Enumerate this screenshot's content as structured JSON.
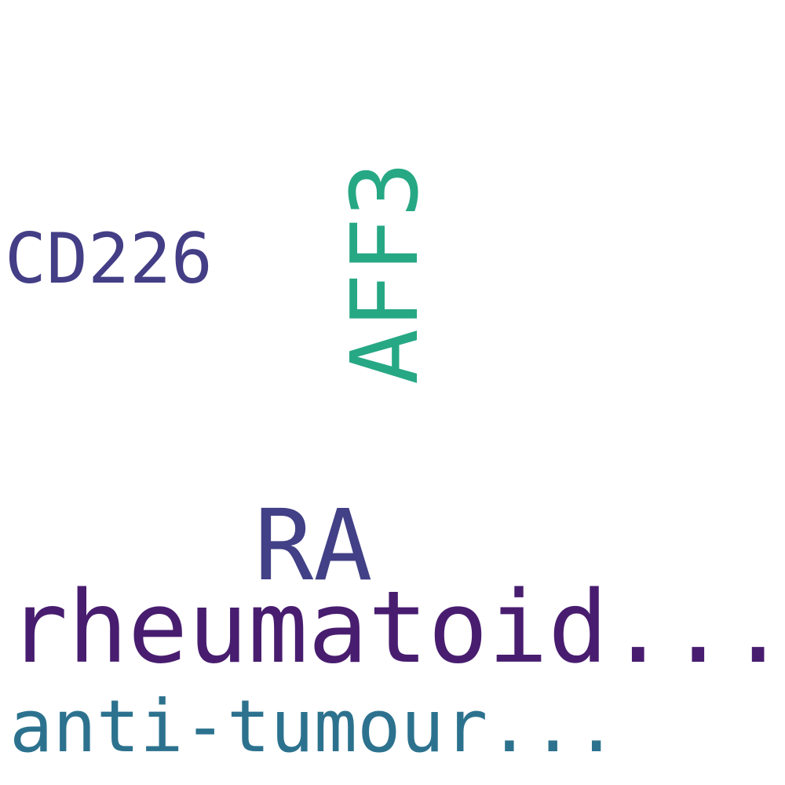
{
  "words": [
    {
      "text": "CD226",
      "color": "#433e85"
    },
    {
      "text": "AFF3",
      "color": "#26a884",
      "orientation": "vertical"
    },
    {
      "text": "RA",
      "color": "#424086"
    },
    {
      "text": "rheumatoid...",
      "color": "#481d6f"
    },
    {
      "text": "anti-tumour...",
      "color": "#2c728e"
    }
  ]
}
